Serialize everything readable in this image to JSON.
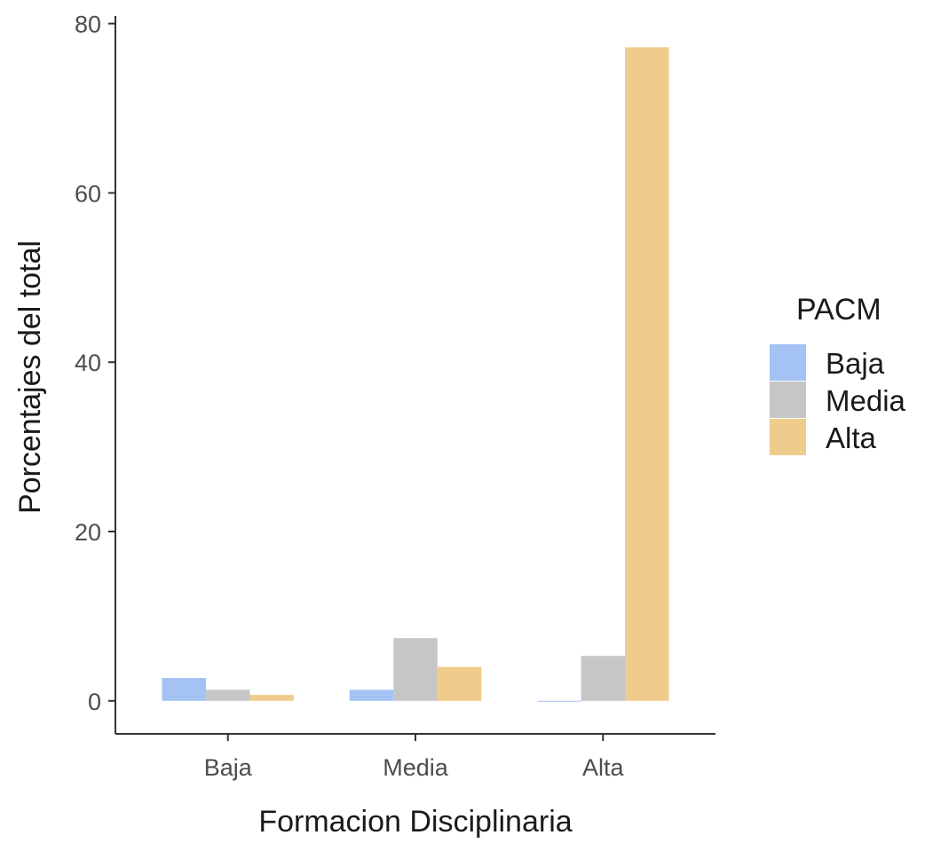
{
  "chart_data": {
    "type": "bar",
    "categories": [
      "Baja",
      "Media",
      "Alta"
    ],
    "series": [
      {
        "name": "Baja",
        "color": "#a4c2f4",
        "values": [
          2.7,
          1.3,
          0
        ]
      },
      {
        "name": "Media",
        "color": "#c6c6c6",
        "values": [
          1.3,
          7.4,
          5.3
        ]
      },
      {
        "name": "Alta",
        "color": "#f0cc8c",
        "values": [
          0.7,
          4.0,
          77.2
        ]
      }
    ],
    "xlabel": "Formacion Disciplinaria",
    "ylabel": "Porcentajes del total",
    "legend_title": "PACM",
    "ylim": [
      -3.9,
      80.9
    ],
    "yticks": [
      0,
      20,
      40,
      60,
      80
    ],
    "grid": false,
    "legend_position": "right"
  }
}
